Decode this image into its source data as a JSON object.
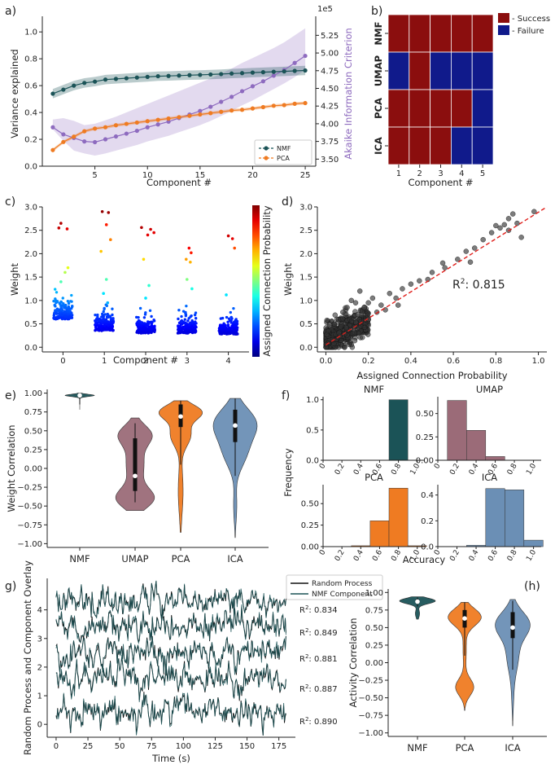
{
  "colors": {
    "nmf": "#1b5357",
    "umap": "#9b6b78",
    "pca": "#ef7b22",
    "ica": "#6b8fb5",
    "aic": "#8e6bbf",
    "success": "#8b0e0e",
    "failure": "#101a8b",
    "random": "#111111",
    "fit": "#e0201c"
  },
  "chart_data": [
    {
      "panel": "a)",
      "type": "line",
      "xlabel": "Component #",
      "ylabel": "Variance explained",
      "y2label": "Akaike Information Criterion",
      "y2_multiplier": "1e5",
      "xlim": [
        0,
        26
      ],
      "ylim": [
        0,
        1.08
      ],
      "y2lim": [
        3.4,
        5.45
      ],
      "xticks": [
        "5",
        "10",
        "15",
        "20",
        "25"
      ],
      "yticks": [
        "0.0",
        "0.2",
        "0.4",
        "0.6",
        "0.8",
        "1.0"
      ],
      "y2ticks": [
        "3.50",
        "3.75",
        "4.00",
        "4.25",
        "4.50",
        "4.75",
        "5.00",
        "5.25"
      ],
      "legend": [
        "NMF",
        "PCA"
      ],
      "x": [
        1,
        2,
        3,
        4,
        5,
        6,
        7,
        8,
        9,
        10,
        11,
        12,
        13,
        14,
        15,
        16,
        17,
        18,
        19,
        20,
        21,
        22,
        23,
        24,
        25
      ],
      "series": [
        {
          "name": "NMF",
          "axis": "left",
          "values": [
            0.54,
            0.57,
            0.6,
            0.62,
            0.63,
            0.645,
            0.65,
            0.655,
            0.66,
            0.665,
            0.67,
            0.672,
            0.675,
            0.678,
            0.68,
            0.683,
            0.686,
            0.69,
            0.693,
            0.697,
            0.7,
            0.703,
            0.706,
            0.71,
            0.713
          ],
          "band": 0.035
        },
        {
          "name": "PCA",
          "axis": "left",
          "values": [
            0.12,
            0.18,
            0.22,
            0.26,
            0.28,
            0.29,
            0.305,
            0.315,
            0.325,
            0.335,
            0.345,
            0.355,
            0.365,
            0.375,
            0.385,
            0.395,
            0.405,
            0.415,
            0.42,
            0.43,
            0.44,
            0.45,
            0.455,
            0.465,
            0.47
          ],
          "band": 0.012
        },
        {
          "name": "AIC",
          "axis": "right",
          "values": [
            3.95,
            3.85,
            3.8,
            3.75,
            3.74,
            3.78,
            3.82,
            3.86,
            3.9,
            3.95,
            3.99,
            4.03,
            4.08,
            4.13,
            4.18,
            4.24,
            4.31,
            4.38,
            4.46,
            4.53,
            4.6,
            4.68,
            4.76,
            4.86,
            4.96
          ],
          "band_lo": [
            3.92,
            3.76,
            3.62,
            3.58,
            3.55,
            3.58,
            3.62,
            3.66,
            3.7,
            3.75,
            3.79,
            3.83,
            3.88,
            3.93,
            3.98,
            4.04,
            4.11,
            4.18,
            4.26,
            4.33,
            4.41,
            4.49,
            4.57,
            4.66,
            4.76
          ],
          "band_hi": [
            4.06,
            4.08,
            4.04,
            3.98,
            4.0,
            4.05,
            4.1,
            4.16,
            4.22,
            4.28,
            4.34,
            4.4,
            4.46,
            4.52,
            4.58,
            4.64,
            4.71,
            4.78,
            4.86,
            4.93,
            5.0,
            5.07,
            5.15,
            5.25,
            5.35
          ]
        }
      ]
    },
    {
      "panel": "b)",
      "type": "heatmap",
      "xlabel": "Component #",
      "rows": [
        "NMF",
        "UMAP",
        "PCA",
        "ICA"
      ],
      "columns": [
        "1",
        "2",
        "3",
        "4",
        "5"
      ],
      "legend": [
        "- Success",
        "- Failure"
      ],
      "values": [
        [
          1,
          1,
          1,
          1,
          1
        ],
        [
          0,
          1,
          0,
          0,
          0
        ],
        [
          1,
          1,
          1,
          1,
          0
        ],
        [
          1,
          1,
          1,
          0,
          0
        ]
      ]
    },
    {
      "panel": "c)",
      "type": "scatter",
      "xlabel": "Component #",
      "ylabel": "Weight",
      "colorbar_label": "Assigned Connection Probability",
      "xlim": [
        -0.5,
        4.5
      ],
      "ylim": [
        -0.1,
        3.0
      ],
      "xticks": [
        "0",
        "1",
        "2",
        "3",
        "4"
      ],
      "yticks": [
        "0.0",
        "0.5",
        "1.0",
        "1.5",
        "2.0",
        "2.5",
        "3.0"
      ],
      "high_points": [
        {
          "x": -0.05,
          "y": 2.65,
          "c": 0.95
        },
        {
          "x": -0.1,
          "y": 2.55,
          "c": 0.93
        },
        {
          "x": 0.1,
          "y": 2.53,
          "c": 0.9
        },
        {
          "x": 0.12,
          "y": 1.7,
          "c": 0.6
        },
        {
          "x": 0.05,
          "y": 1.6,
          "c": 0.55
        },
        {
          "x": -0.05,
          "y": 1.4,
          "c": 0.45
        },
        {
          "x": 0.95,
          "y": 2.9,
          "c": 0.98
        },
        {
          "x": 1.1,
          "y": 2.88,
          "c": 0.97
        },
        {
          "x": 1.05,
          "y": 2.62,
          "c": 0.85
        },
        {
          "x": 1.15,
          "y": 2.3,
          "c": 0.75
        },
        {
          "x": 0.92,
          "y": 2.05,
          "c": 0.68
        },
        {
          "x": 1.05,
          "y": 1.45,
          "c": 0.45
        },
        {
          "x": 0.98,
          "y": 1.15,
          "c": 0.35
        },
        {
          "x": 1.08,
          "y": 0.95,
          "c": 0.3
        },
        {
          "x": 1.9,
          "y": 2.56,
          "c": 0.95
        },
        {
          "x": 2.12,
          "y": 2.52,
          "c": 0.92
        },
        {
          "x": 2.2,
          "y": 2.45,
          "c": 0.9
        },
        {
          "x": 2.05,
          "y": 2.4,
          "c": 0.9
        },
        {
          "x": 1.95,
          "y": 1.88,
          "c": 0.66
        },
        {
          "x": 2.08,
          "y": 1.32,
          "c": 0.42
        },
        {
          "x": 2.0,
          "y": 1.05,
          "c": 0.35
        },
        {
          "x": 3.05,
          "y": 2.12,
          "c": 0.88
        },
        {
          "x": 3.1,
          "y": 2.02,
          "c": 0.85
        },
        {
          "x": 2.98,
          "y": 1.88,
          "c": 0.72
        },
        {
          "x": 3.08,
          "y": 1.82,
          "c": 0.7
        },
        {
          "x": 3.0,
          "y": 1.45,
          "c": 0.5
        },
        {
          "x": 3.12,
          "y": 1.25,
          "c": 0.4
        },
        {
          "x": 4.0,
          "y": 2.38,
          "c": 0.92
        },
        {
          "x": 4.1,
          "y": 2.32,
          "c": 0.9
        },
        {
          "x": 4.15,
          "y": 2.12,
          "c": 0.8
        },
        {
          "x": 3.95,
          "y": 1.12,
          "c": 0.35
        }
      ],
      "cluster_means": [
        0.6,
        0.35,
        0.3,
        0.3,
        0.28
      ],
      "cluster_spread": [
        0.3,
        0.25,
        0.25,
        0.25,
        0.2
      ]
    },
    {
      "panel": "d)",
      "type": "scatter",
      "xlabel": "Assigned Connection Probability",
      "ylabel": "Weight",
      "annotation_prefix": "R",
      "annotation_exp": "2",
      "annotation_value": ": 0.815",
      "xlim": [
        -0.04,
        1.04
      ],
      "ylim": [
        -0.1,
        3.0
      ],
      "xticks": [
        "0.0",
        "0.2",
        "0.4",
        "0.6",
        "0.8",
        "1.0"
      ],
      "yticks": [
        "0.0",
        "0.5",
        "1.0",
        "1.5",
        "2.0",
        "2.5",
        "3.0"
      ],
      "fit_line": [
        [
          0.0,
          0.05
        ],
        [
          1.04,
          3.0
        ]
      ],
      "points": [
        [
          0.98,
          2.9
        ],
        [
          0.88,
          2.85
        ],
        [
          0.86,
          2.75
        ],
        [
          0.9,
          2.65
        ],
        [
          0.84,
          2.62
        ],
        [
          0.8,
          2.6
        ],
        [
          0.82,
          2.55
        ],
        [
          0.86,
          2.5
        ],
        [
          0.78,
          2.45
        ],
        [
          0.92,
          2.35
        ],
        [
          0.74,
          2.3
        ],
        [
          0.7,
          2.12
        ],
        [
          0.66,
          2.05
        ],
        [
          0.62,
          1.88
        ],
        [
          0.68,
          1.82
        ],
        [
          0.55,
          1.8
        ],
        [
          0.56,
          1.7
        ],
        [
          0.5,
          1.6
        ],
        [
          0.48,
          1.45
        ],
        [
          0.44,
          1.42
        ],
        [
          0.4,
          1.35
        ],
        [
          0.36,
          1.25
        ],
        [
          0.33,
          1.05
        ],
        [
          0.3,
          1.15
        ],
        [
          0.26,
          0.9
        ],
        [
          0.22,
          1.05
        ],
        [
          0.2,
          0.95
        ],
        [
          0.18,
          0.85
        ],
        [
          0.24,
          0.75
        ],
        [
          0.16,
          1.2
        ],
        [
          0.14,
          0.95
        ],
        [
          0.12,
          1.0
        ],
        [
          0.1,
          0.85
        ],
        [
          0.28,
          0.8
        ],
        [
          0.34,
          0.9
        ],
        [
          0.2,
          0.6
        ],
        [
          0.15,
          0.7
        ],
        [
          0.08,
          0.75
        ]
      ],
      "dense_cloud": {
        "x_range": [
          0.0,
          0.2
        ],
        "y_range": [
          0.0,
          0.9
        ]
      }
    },
    {
      "panel": "e)",
      "type": "violin",
      "ylabel": "Weight Correlation",
      "categories": [
        "NMF",
        "UMAP",
        "PCA",
        "ICA"
      ],
      "ylim": [
        -1.05,
        1.05
      ],
      "yticks": [
        "1.00",
        "0.75",
        "0.50",
        "0.25",
        "0.00",
        "−0.25",
        "−0.50",
        "−0.75",
        "−1.00"
      ],
      "medians": [
        0.97,
        -0.1,
        0.69,
        0.57
      ]
    },
    {
      "panel": "f)",
      "type": "bar",
      "ylabel": "Frequency",
      "xlabel": "Accuracy",
      "xticks": [
        "0",
        "0.2",
        "0.4",
        "0.6",
        "0.8",
        "1.0"
      ],
      "bin_edges": [
        0.0,
        0.2,
        0.4,
        0.6,
        0.8,
        1.0
      ],
      "subplots": [
        {
          "title": "NMF",
          "yticks": [
            "0.0",
            "0.5",
            "1.0"
          ],
          "ymax": 1.05,
          "values": [
            0,
            0,
            0,
            0,
            1.0,
            0
          ]
        },
        {
          "title": "UMAP",
          "yticks": [
            "0.00",
            "0.25",
            "0.50"
          ],
          "ymax": 0.68,
          "values": [
            0,
            0.64,
            0.32,
            0.04,
            0,
            0
          ]
        },
        {
          "title": "PCA",
          "yticks": [
            "0.00",
            "0.25",
            "0.50"
          ],
          "ymax": 0.72,
          "values": [
            0,
            0,
            0.01,
            0.3,
            0.68,
            0.01
          ]
        },
        {
          "title": "ICA",
          "yticks": [
            "0.0",
            "0.2",
            "0.4"
          ],
          "ymax": 0.48,
          "values": [
            0,
            0,
            0.01,
            0.45,
            0.44,
            0.05
          ]
        }
      ]
    },
    {
      "panel": "g)",
      "type": "line",
      "xlabel": "Time (s)",
      "ylabel": "Random Process and Component Overlay",
      "xlim": [
        -7,
        188
      ],
      "ylim": [
        -0.45,
        5.1
      ],
      "xticks": [
        "0",
        "25",
        "50",
        "75",
        "100",
        "125",
        "150",
        "175"
      ],
      "yticks": [
        "0",
        "1",
        "2",
        "3",
        "4"
      ],
      "legend": [
        "Random Process",
        "NMF Component"
      ],
      "trace_offsets": [
        4.3,
        3.5,
        2.5,
        1.55,
        0.4
      ],
      "r2_prefix": "R",
      "r2_exp": "2",
      "r2_values": [
        ": 0.834",
        ": 0.849",
        ": 0.881",
        ": 0.887",
        ": 0.890"
      ]
    },
    {
      "panel": "(h)",
      "type": "violin",
      "ylabel": "Activity Correlation",
      "categories": [
        "NMF",
        "PCA",
        "ICA"
      ],
      "ylim": [
        -1.05,
        1.05
      ],
      "yticks": [
        "1.00",
        "0.75",
        "0.50",
        "0.25",
        "0.00",
        "−0.25",
        "−0.50",
        "−0.75",
        "−1.00"
      ],
      "medians": [
        0.87,
        0.63,
        0.5
      ]
    }
  ]
}
